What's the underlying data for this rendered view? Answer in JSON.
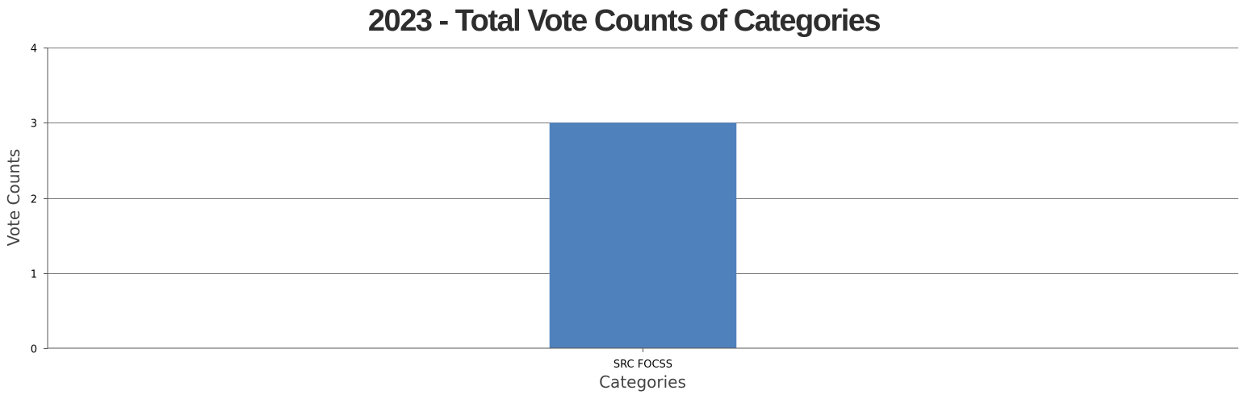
{
  "chart_data": {
    "type": "bar",
    "title": "2023 - Total Vote Counts of Categories",
    "xlabel": "Categories",
    "ylabel": "Vote Counts",
    "categories": [
      "SRC FOCSS"
    ],
    "values": [
      3
    ],
    "ylim": [
      0,
      4
    ],
    "yticks": [
      0,
      1,
      2,
      3,
      4
    ],
    "grid": true,
    "legend": "none",
    "bar_color": "#4f81bc"
  }
}
